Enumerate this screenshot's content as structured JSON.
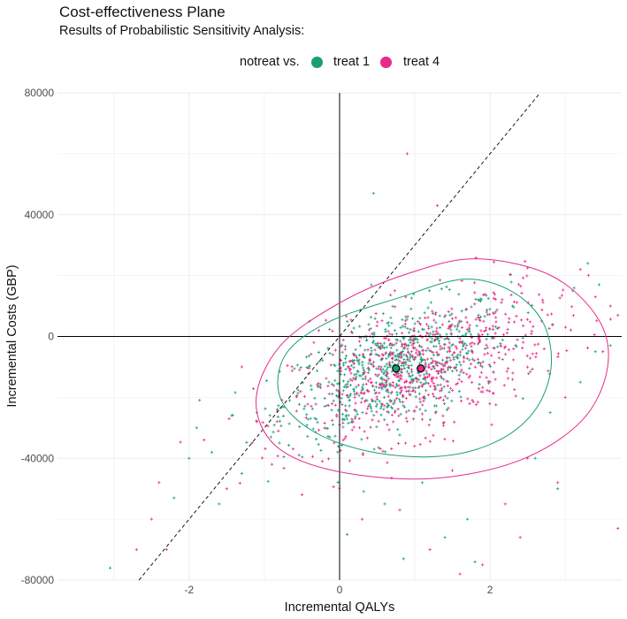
{
  "title": "Cost-effectiveness Plane",
  "subtitle": "Results of Probabilistic Sensitivity Analysis:",
  "legend": {
    "prefix": "notreat vs.",
    "items": [
      {
        "label": "treat 1",
        "color": "#1b9e77"
      },
      {
        "label": "treat 4",
        "color": "#e7298a"
      }
    ]
  },
  "chart_data": {
    "type": "scatter",
    "xlabel": "Incremental QALYs",
    "ylabel": "Incremental Costs (GBP)",
    "xlim": [
      -3.75,
      3.75
    ],
    "ylim": [
      -80000,
      80000
    ],
    "x_ticks": [
      -2,
      0,
      2
    ],
    "y_ticks": [
      -80000,
      -40000,
      0,
      40000,
      80000
    ],
    "x_tick_labels": [
      "-2",
      "0",
      "2"
    ],
    "y_tick_labels": [
      "-80000",
      "-40000",
      "0",
      "40000",
      "80000"
    ],
    "grid": true,
    "legend_position": "top",
    "wtp_line_slope": 30000,
    "series": [
      {
        "name": "treat 1",
        "color": "#1b9e77",
        "mean": [
          0.75,
          -10500
        ],
        "ellipse_points": [
          [
            1.65,
            18800
          ],
          [
            2.29,
            14800
          ],
          [
            2.71,
            4300
          ],
          [
            2.81,
            -10500
          ],
          [
            2.58,
            -24800
          ],
          [
            2.06,
            -34800
          ],
          [
            1.31,
            -39400
          ],
          [
            0.4,
            -37800
          ],
          [
            -0.36,
            -31000
          ],
          [
            -0.79,
            -20000
          ],
          [
            -0.72,
            -6000
          ],
          [
            -0.16,
            4600
          ],
          [
            0.8,
            12800
          ]
        ],
        "outliers": [
          [
            -3.05,
            -76000
          ],
          [
            0.45,
            47000
          ],
          [
            1.4,
            -66000
          ],
          [
            3.4,
            -5000
          ],
          [
            3.3,
            24000
          ],
          [
            1.8,
            -74000
          ],
          [
            -2.0,
            -40000
          ],
          [
            -1.9,
            -30000
          ],
          [
            0.85,
            -73000
          ],
          [
            1.7,
            -60000
          ],
          [
            2.9,
            -50000
          ],
          [
            -1.6,
            -55000
          ],
          [
            3.1,
            15000
          ],
          [
            3.6,
            -3000
          ],
          [
            -0.4,
            5000
          ],
          [
            2.6,
            -40000
          ],
          [
            -1.1,
            -25000
          ],
          [
            0.1,
            -65000
          ],
          [
            2.3,
            10000
          ],
          [
            -2.2,
            -53000
          ],
          [
            3.2,
            -15000
          ],
          [
            -1.3,
            -45000
          ],
          [
            0.6,
            -55000
          ],
          [
            1.1,
            -48000
          ],
          [
            2.8,
            -25000
          ],
          [
            -0.8,
            -35000
          ],
          [
            3.45,
            17000
          ],
          [
            -1.7,
            -38000
          ]
        ]
      },
      {
        "name": "treat 4",
        "color": "#e7298a",
        "mean": [
          1.08,
          -10500
        ],
        "ellipse_points": [
          [
            1.81,
            25500
          ],
          [
            2.81,
            20000
          ],
          [
            3.44,
            5700
          ],
          [
            3.56,
            -10500
          ],
          [
            3.21,
            -27900
          ],
          [
            2.36,
            -41000
          ],
          [
            1.18,
            -46700
          ],
          [
            -0.07,
            -44100
          ],
          [
            -0.85,
            -35900
          ],
          [
            -1.11,
            -20900
          ],
          [
            -0.79,
            -3100
          ],
          [
            0.0,
            11000
          ],
          [
            0.89,
            20500
          ]
        ],
        "outliers": [
          [
            1.3,
            43000
          ],
          [
            0.9,
            60000
          ],
          [
            -2.5,
            -60000
          ],
          [
            -2.7,
            -70000
          ],
          [
            1.9,
            -75000
          ],
          [
            1.6,
            -78000
          ],
          [
            -1.3,
            -10000
          ],
          [
            3.7,
            7000
          ],
          [
            3.7,
            -63000
          ],
          [
            3.4,
            13000
          ],
          [
            2.2,
            -55000
          ],
          [
            -2.3,
            -70000
          ],
          [
            3.6,
            10000
          ],
          [
            2.5,
            -40000
          ],
          [
            0.8,
            -57000
          ],
          [
            3.2,
            22000
          ],
          [
            -1.5,
            -50000
          ],
          [
            2.9,
            -48000
          ],
          [
            1.5,
            -44000
          ],
          [
            -0.5,
            -52000
          ],
          [
            3.0,
            -20000
          ],
          [
            -1.8,
            -34000
          ],
          [
            0.3,
            -60000
          ],
          [
            2.7,
            12000
          ],
          [
            -2.4,
            -48000
          ],
          [
            1.2,
            -70000
          ],
          [
            -0.9,
            -42000
          ],
          [
            3.5,
            -5000
          ],
          [
            2.4,
            -66000
          ],
          [
            -1.1,
            -28000
          ]
        ]
      }
    ]
  }
}
